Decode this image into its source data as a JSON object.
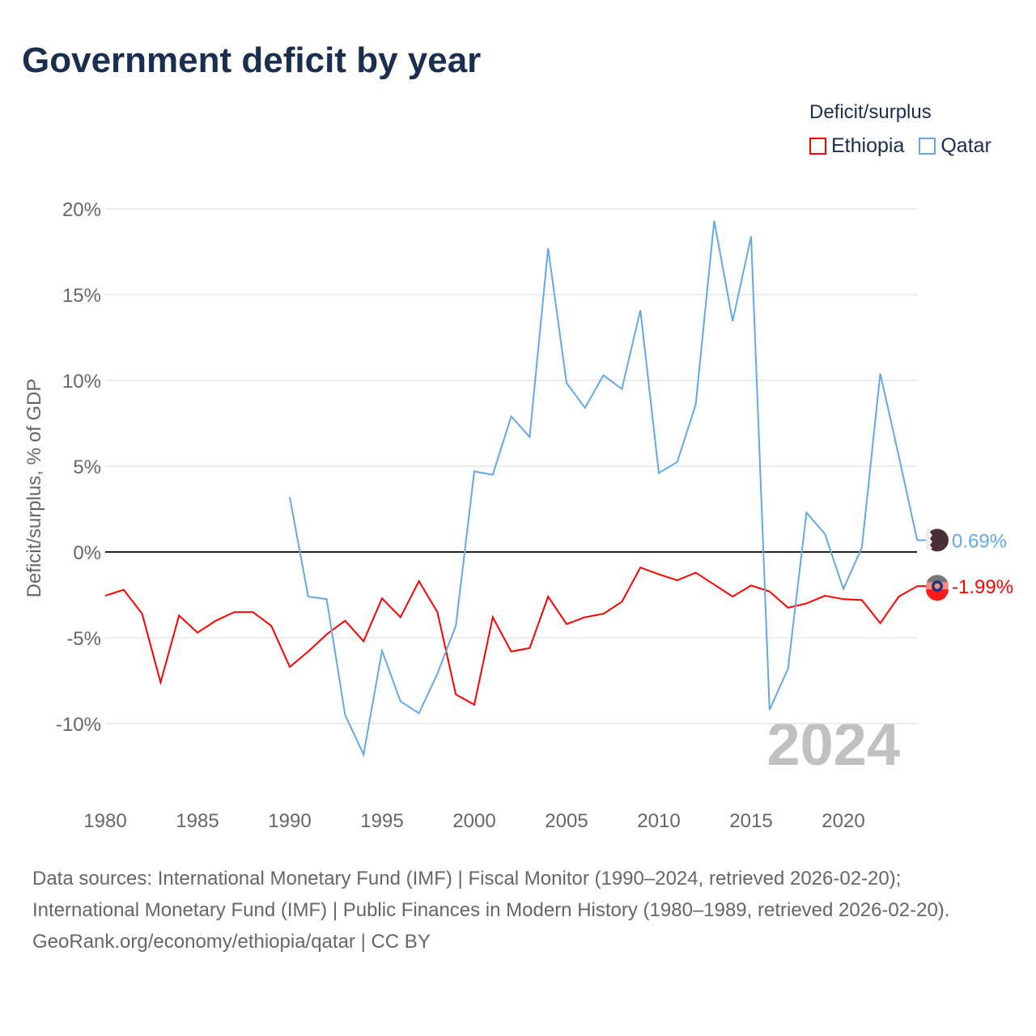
{
  "title": "Government deficit by year",
  "legend": {
    "title": "Deficit/surplus",
    "items": [
      {
        "label": "Ethiopia",
        "color": "#ff0000"
      },
      {
        "label": "Qatar",
        "color": "#64a8e8"
      }
    ]
  },
  "year_watermark": "2024",
  "footer": {
    "sources": "Data sources: International Monetary Fund (IMF) | Fiscal Monitor (1990–2024, retrieved 2026-02-20); International Monetary Fund (IMF) | Public Finances in Modern History (1980–1989, retrieved 2026-02-20).",
    "credit": "GeoRank.org/economy/ethiopia/qatar | CC BY"
  },
  "chart_data": {
    "type": "line",
    "title": "Government deficit by year",
    "ylabel": "Deficit/surplus, % of GDP",
    "xlim": [
      1980,
      2024
    ],
    "ylim": [
      -12.5,
      21
    ],
    "x_ticks": [
      1980,
      1985,
      1990,
      1995,
      2000,
      2005,
      2010,
      2015,
      2020
    ],
    "y_ticks": [
      {
        "v": 20,
        "label": "20%"
      },
      {
        "v": 15,
        "label": "15%"
      },
      {
        "v": 10,
        "label": "10%"
      },
      {
        "v": 5,
        "label": "5%"
      },
      {
        "v": 0,
        "label": "0%"
      },
      {
        "v": -5,
        "label": "-5%"
      },
      {
        "v": -10,
        "label": "-10%"
      }
    ],
    "grid": true,
    "legend_position": "top-right",
    "series": [
      {
        "name": "Ethiopia",
        "color": "#ff0000",
        "start": 1980,
        "end_label": "-1.99%",
        "values": [
          -2.55,
          -2.2,
          -3.6,
          -7.6,
          -3.7,
          -4.7,
          -4.0,
          -3.5,
          -3.5,
          -4.3,
          -6.7,
          -5.8,
          -4.8,
          -4.0,
          -5.2,
          -2.7,
          -3.8,
          -1.7,
          -3.5,
          -8.3,
          -8.9,
          -3.8,
          -5.8,
          -5.6,
          -2.6,
          -4.2,
          -3.8,
          -3.6,
          -2.9,
          -0.9,
          -1.3,
          -1.65,
          -1.2,
          -1.9,
          -2.6,
          -1.95,
          -2.3,
          -3.25,
          -3.0,
          -2.55,
          -2.75,
          -2.8,
          -4.15,
          -2.6,
          -1.99
        ]
      },
      {
        "name": "Qatar",
        "color": "#64a8e8",
        "start": 1990,
        "end_label": "0.69%",
        "values": [
          3.2,
          -2.6,
          -2.75,
          -9.5,
          -11.8,
          -5.75,
          -8.7,
          -9.4,
          -7.1,
          -4.3,
          4.7,
          4.5,
          7.9,
          6.7,
          17.7,
          9.85,
          8.4,
          10.3,
          9.5,
          14.1,
          4.6,
          5.25,
          8.6,
          19.3,
          13.45,
          18.4,
          -9.2,
          -6.8,
          2.3,
          1.05,
          -2.15,
          0.25,
          10.4,
          5.6,
          0.69
        ]
      }
    ]
  }
}
